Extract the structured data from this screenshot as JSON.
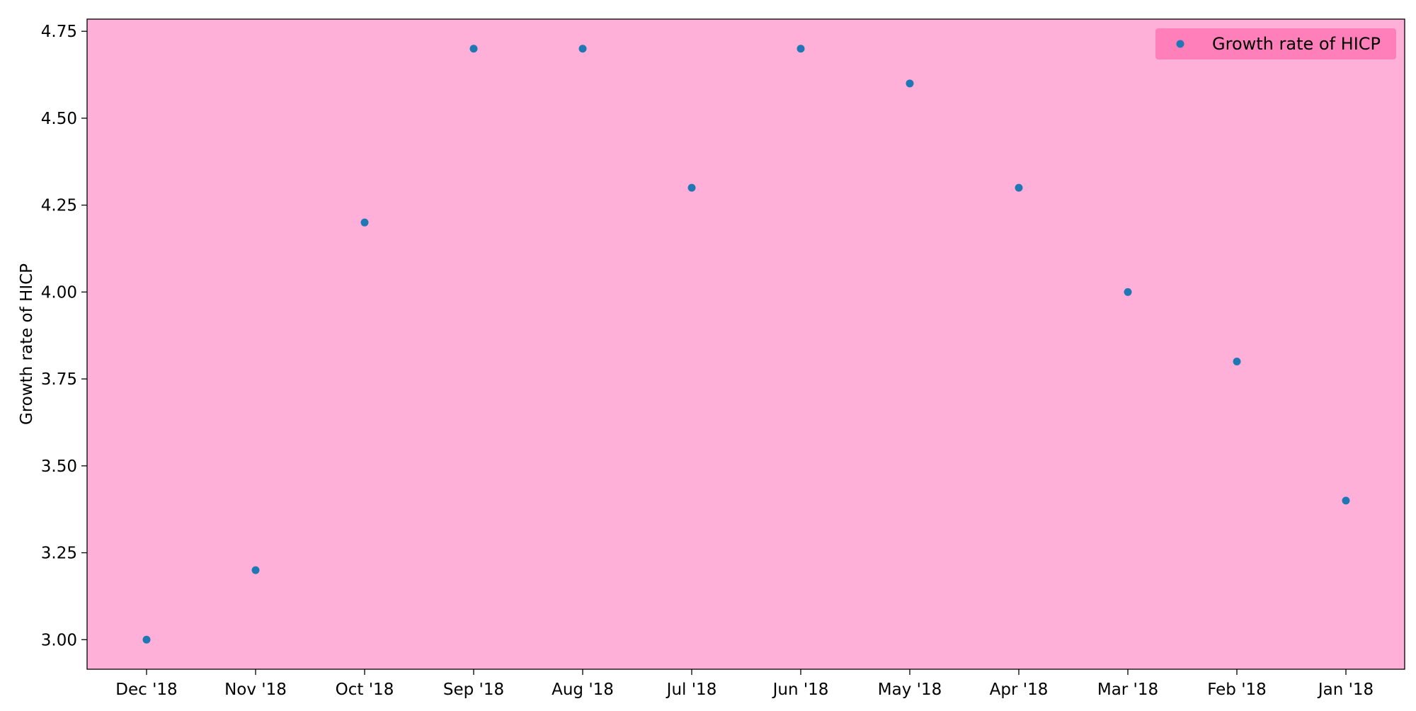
{
  "chart_data": {
    "type": "scatter",
    "title": "",
    "xlabel": "",
    "ylabel": "Growth rate of HICP",
    "categories": [
      "Dec '18",
      "Nov '18",
      "Oct '18",
      "Sep '18",
      "Aug '18",
      "Jul '18",
      "Jun '18",
      "May '18",
      "Apr '18",
      "Mar '18",
      "Feb '18",
      "Jan '18"
    ],
    "series": [
      {
        "name": "Growth rate of HICP",
        "values": [
          3.0,
          3.2,
          4.2,
          4.7,
          4.7,
          4.3,
          4.7,
          4.6,
          4.3,
          4.0,
          3.8,
          3.4
        ]
      }
    ],
    "ylim": [
      2.915,
      4.785
    ],
    "yticks": [
      3.0,
      3.25,
      3.5,
      3.75,
      4.0,
      4.25,
      4.5,
      4.75
    ],
    "ytick_labels": [
      "3.00",
      "3.25",
      "3.50",
      "3.75",
      "4.00",
      "4.25",
      "4.50",
      "4.75"
    ],
    "grid": false,
    "legend_position": "top-right",
    "colors": {
      "plot_background": "#ffb0d8",
      "legend_background": "#ff7ab8",
      "marker": "#1f77b4",
      "axis": "#000000"
    }
  }
}
